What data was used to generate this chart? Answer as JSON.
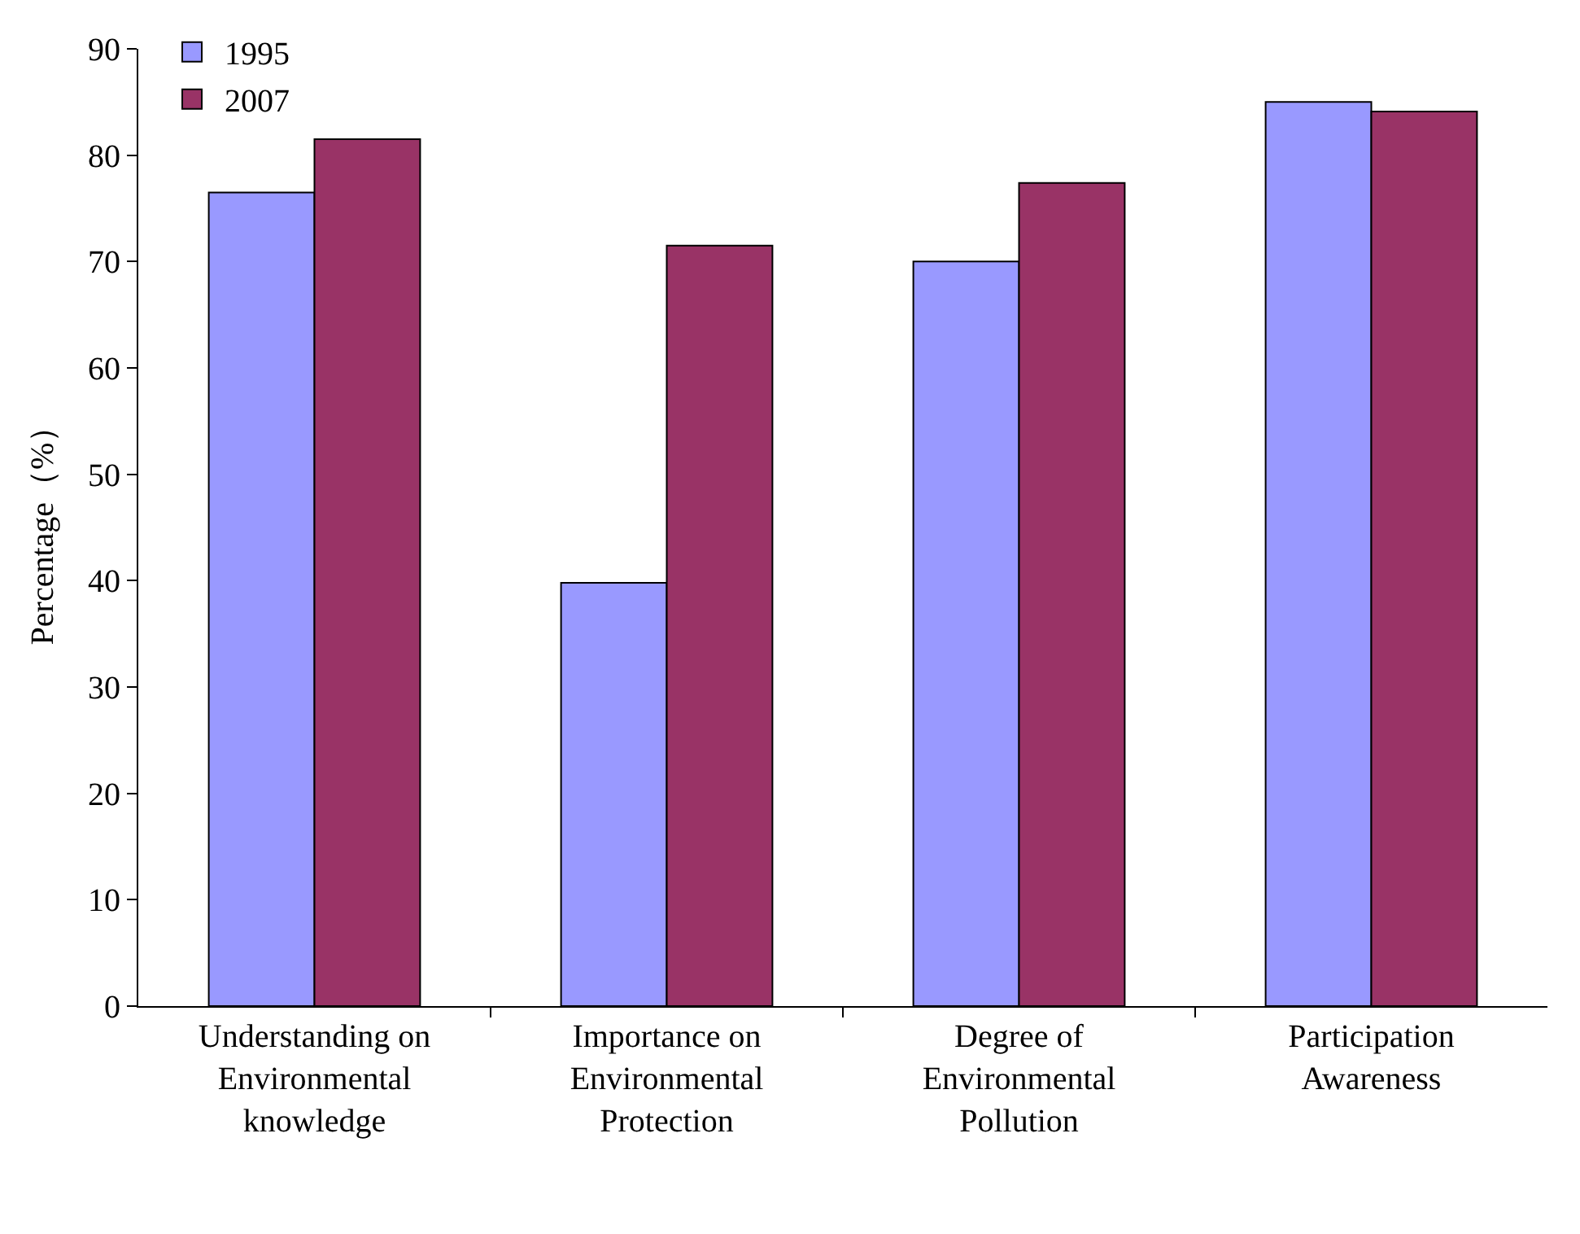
{
  "chart_data": {
    "type": "bar",
    "ylabel": "Percentage（%）",
    "categories": [
      "Understanding on Environmental knowledge",
      "Importance on Environmental Protection",
      "Degree of Environmental Pollution",
      "Participation Awareness"
    ],
    "series": [
      {
        "name": "1995",
        "color": "#9999ff",
        "values": [
          76.5,
          39.8,
          70.0,
          85.0
        ]
      },
      {
        "name": "2007",
        "color": "#993366",
        "values": [
          81.5,
          71.5,
          77.4,
          84.1
        ]
      }
    ],
    "ylim": [
      0,
      90
    ],
    "yticks": [
      0,
      10,
      20,
      30,
      40,
      50,
      60,
      70,
      80,
      90
    ],
    "legend": "top left"
  }
}
